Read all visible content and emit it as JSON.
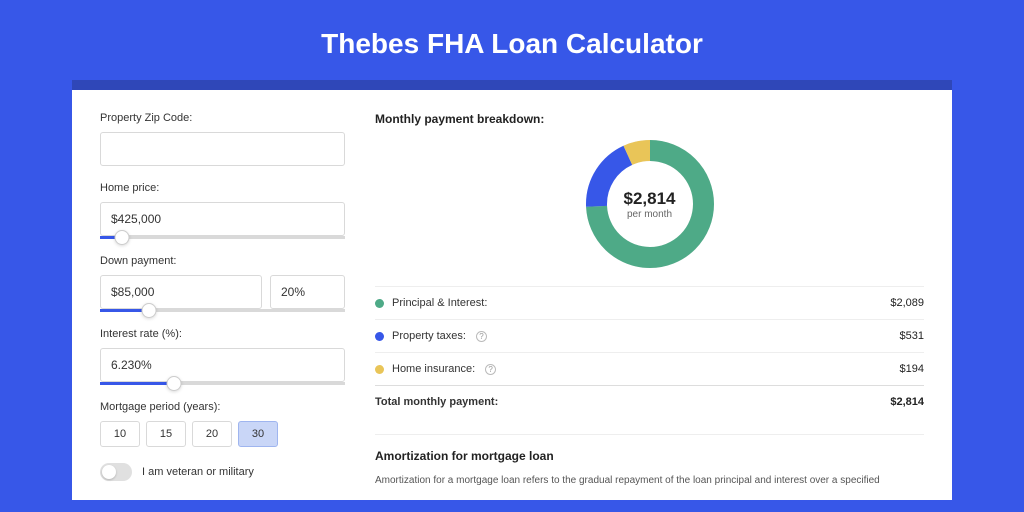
{
  "page": {
    "title": "Thebes FHA Loan Calculator",
    "background_color": "#3757e8",
    "card_accent_color": "#2f47b8"
  },
  "form": {
    "zip": {
      "label": "Property Zip Code:",
      "value": ""
    },
    "home_price": {
      "label": "Home price:",
      "value": "$425,000",
      "slider_pct": 9
    },
    "down_payment": {
      "label": "Down payment:",
      "amount": "$85,000",
      "percent": "20%",
      "slider_pct": 20
    },
    "interest_rate": {
      "label": "Interest rate (%):",
      "value": "6.230%",
      "slider_pct": 30
    },
    "mortgage_period": {
      "label": "Mortgage period (years):",
      "options": [
        "10",
        "15",
        "20",
        "30"
      ],
      "selected_index": 3
    },
    "veteran": {
      "label": "I am veteran or military",
      "checked": false
    }
  },
  "breakdown": {
    "title": "Monthly payment breakdown:",
    "donut": {
      "center_value": "$2,814",
      "center_sub": "per month",
      "size": 128,
      "stroke_width": 21,
      "track_color": "#e8e8e8",
      "slices": [
        {
          "key": "principal_interest",
          "value": 2089,
          "color": "#4eaa87"
        },
        {
          "key": "property_taxes",
          "value": 531,
          "color": "#3757e8"
        },
        {
          "key": "home_insurance",
          "value": 194,
          "color": "#e9c558"
        }
      ]
    },
    "rows": [
      {
        "dot_color": "#4eaa87",
        "label": "Principal & Interest:",
        "value": "$2,089",
        "info": false
      },
      {
        "dot_color": "#3757e8",
        "label": "Property taxes:",
        "value": "$531",
        "info": true
      },
      {
        "dot_color": "#e9c558",
        "label": "Home insurance:",
        "value": "$194",
        "info": true
      }
    ],
    "total": {
      "label": "Total monthly payment:",
      "value": "$2,814"
    }
  },
  "amortization": {
    "title": "Amortization for mortgage loan",
    "text": "Amortization for a mortgage loan refers to the gradual repayment of the loan principal and interest over a specified"
  }
}
